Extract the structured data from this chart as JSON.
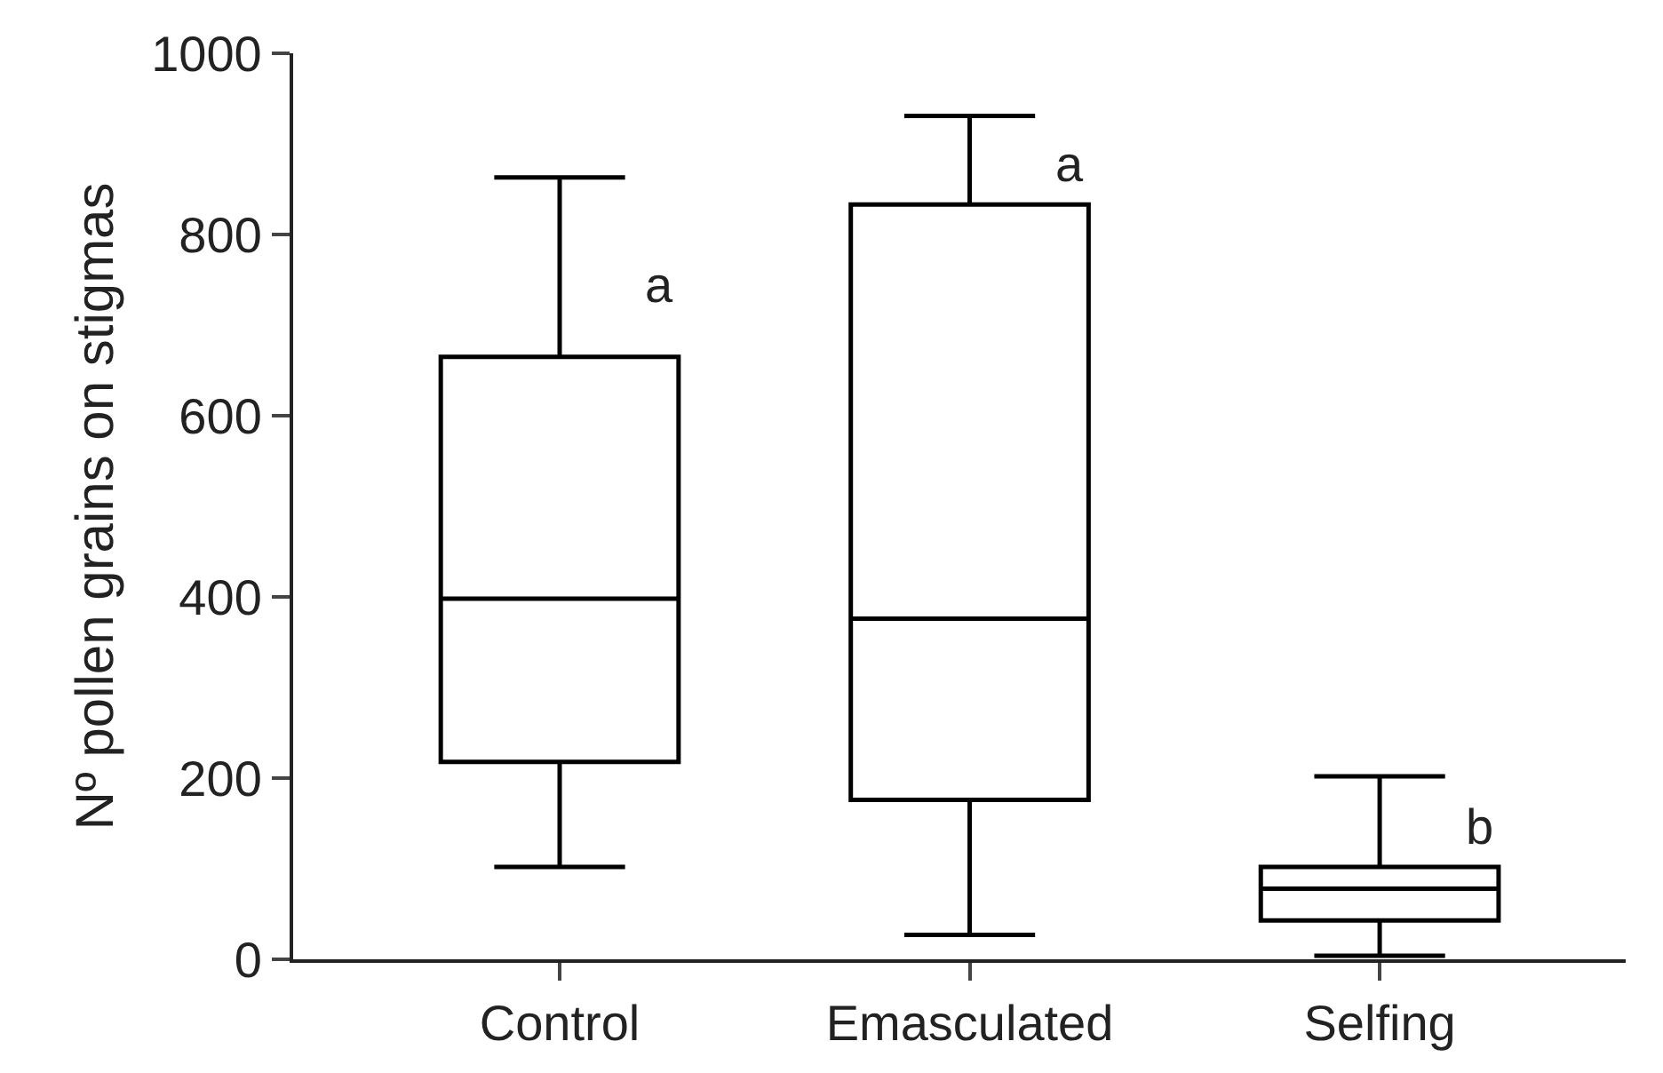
{
  "chart_data": {
    "type": "box",
    "ylabel": "Nº pollen grains on stigmas",
    "categories": [
      "Control",
      "Emasculated",
      "Selfing"
    ],
    "series": [
      {
        "color": "#000000",
        "boxes": [
          {
            "low": 102,
            "q1": 218,
            "median": 398,
            "q3": 665,
            "high": 863
          },
          {
            "low": 27,
            "q1": 176,
            "median": 376,
            "q3": 833,
            "high": 931
          },
          {
            "low": 4,
            "q1": 43,
            "median": 78,
            "q3": 102,
            "high": 202
          }
        ]
      }
    ],
    "annotations": [
      {
        "text": "a",
        "x": "Control",
        "y": 745
      },
      {
        "text": "a",
        "x": "Emasculated",
        "y": 878
      },
      {
        "text": "b",
        "x": "Selfing",
        "y": 147
      }
    ],
    "ylim": [
      0,
      1000
    ],
    "yticks": [
      0,
      200,
      400,
      600,
      800,
      1000
    ],
    "grid": false
  }
}
